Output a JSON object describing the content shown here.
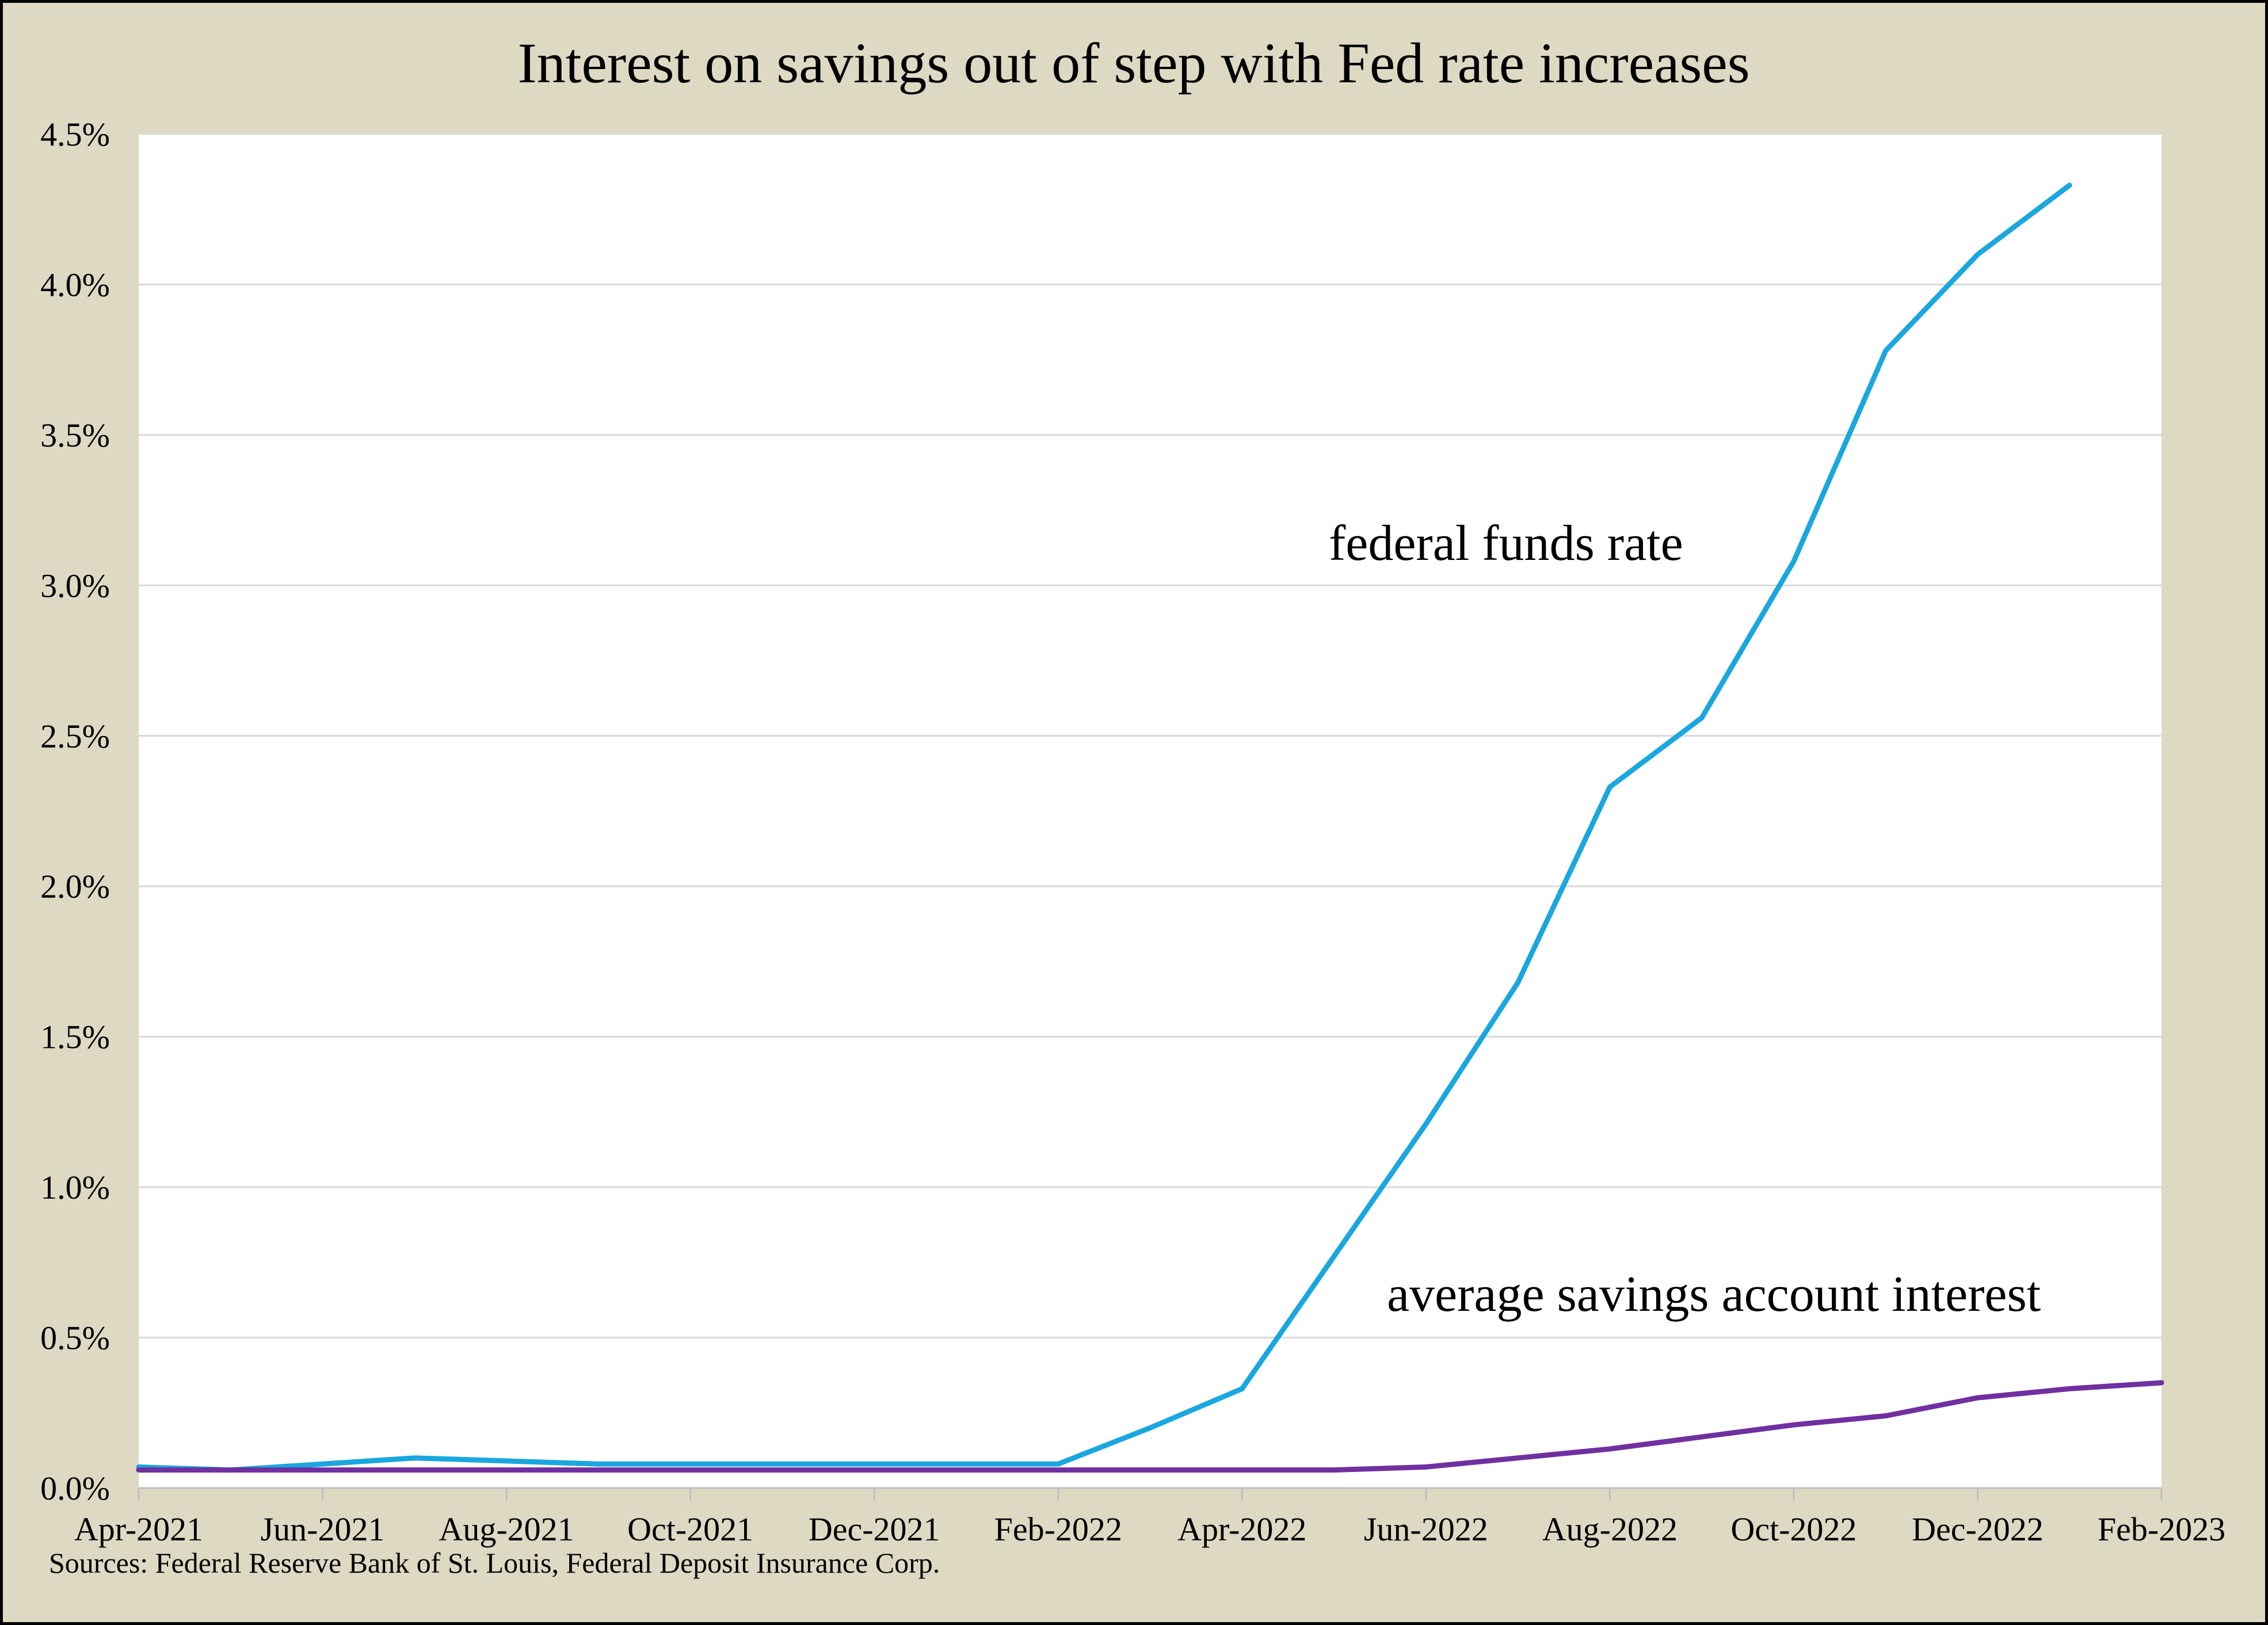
{
  "chart_data": {
    "type": "line",
    "title": "Interest on savings out of step with Fed rate increases",
    "xlabel": "",
    "ylabel": "",
    "x": [
      "Apr-2021",
      "May-2021",
      "Jun-2021",
      "Jul-2021",
      "Aug-2021",
      "Sep-2021",
      "Oct-2021",
      "Nov-2021",
      "Dec-2021",
      "Jan-2022",
      "Feb-2022",
      "Mar-2022",
      "Apr-2022",
      "May-2022",
      "Jun-2022",
      "Jul-2022",
      "Aug-2022",
      "Sep-2022",
      "Oct-2022",
      "Nov-2022",
      "Dec-2022",
      "Jan-2023",
      "Feb-2023"
    ],
    "x_tick_labels": [
      "Apr-2021",
      "Jun-2021",
      "Aug-2021",
      "Oct-2021",
      "Dec-2021",
      "Feb-2022",
      "Apr-2022",
      "Jun-2022",
      "Aug-2022",
      "Oct-2022",
      "Dec-2022",
      "Feb-2023"
    ],
    "ylim": [
      0,
      4.5
    ],
    "y_tick_labels": [
      "0.0%",
      "0.5%",
      "1.0%",
      "1.5%",
      "2.0%",
      "2.5%",
      "3.0%",
      "3.5%",
      "4.0%",
      "4.5%"
    ],
    "grid": true,
    "series": [
      {
        "name": "federal funds rate",
        "color": "#1aa7e0",
        "values": [
          0.07,
          0.06,
          0.08,
          0.1,
          0.09,
          0.08,
          0.08,
          0.08,
          0.08,
          0.08,
          0.08,
          0.2,
          0.33,
          0.77,
          1.21,
          1.68,
          2.33,
          2.56,
          3.08,
          3.78,
          4.1,
          4.33,
          null
        ]
      },
      {
        "name": "average savings account interest",
        "color": "#7030a0",
        "values": [
          0.06,
          0.06,
          0.06,
          0.06,
          0.06,
          0.06,
          0.06,
          0.06,
          0.06,
          0.06,
          0.06,
          0.06,
          0.06,
          0.06,
          0.07,
          0.1,
          0.13,
          0.17,
          0.21,
          0.24,
          0.3,
          0.33,
          0.35
        ]
      }
    ],
    "annotations": [
      "federal funds rate",
      "average savings account interest"
    ],
    "source": "Sources: Federal Reserve Bank of St. Louis, Federal Deposit Insurance Corp."
  }
}
